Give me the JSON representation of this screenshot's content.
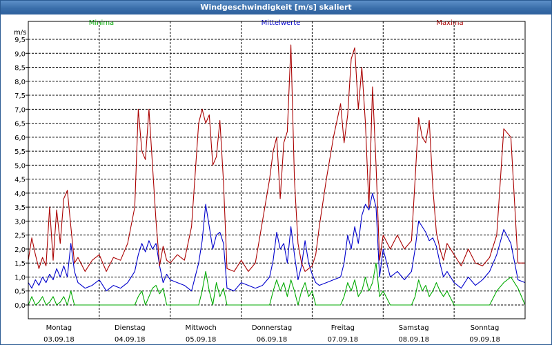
{
  "window": {
    "title": "Windgeschwindigkeit [m/s] skaliert"
  },
  "chart_data": {
    "type": "line",
    "title": "Windgeschwindigkeit [m/s] skaliert",
    "ylabel": "m/s",
    "ylim": [
      0,
      9.5
    ],
    "xlim": [
      0,
      7
    ],
    "grid": true,
    "legend": "top",
    "yticks": [
      "0,0",
      "0,5",
      "1,0",
      "1,5",
      "2,0",
      "2,5",
      "3,0",
      "3,5",
      "4,0",
      "4,5",
      "5,0",
      "5,5",
      "6,0",
      "6,5",
      "7,0",
      "7,5",
      "8,0",
      "8,5",
      "9,0",
      "9,5"
    ],
    "day_labels": [
      {
        "day": "Montag",
        "date": "03.09.18"
      },
      {
        "day": "Dienstag",
        "date": "04.09.18"
      },
      {
        "day": "Mittwoch",
        "date": "05.09.18"
      },
      {
        "day": "Donnerstag",
        "date": "06.09.18"
      },
      {
        "day": "Freitag",
        "date": "07.09.18"
      },
      {
        "day": "Samstag",
        "date": "08.09.18"
      },
      {
        "day": "Sonntag",
        "date": "09.09.18"
      }
    ],
    "series": [
      {
        "name": "Minima",
        "color": "#00aa00",
        "x": [
          0.0,
          0.05,
          0.1,
          0.15,
          0.2,
          0.25,
          0.3,
          0.35,
          0.4,
          0.45,
          0.5,
          0.55,
          0.6,
          0.65,
          0.7,
          0.8,
          0.9,
          1.0,
          1.1,
          1.2,
          1.3,
          1.4,
          1.5,
          1.55,
          1.6,
          1.65,
          1.7,
          1.75,
          1.8,
          1.85,
          1.9,
          1.95,
          2.0,
          2.1,
          2.2,
          2.3,
          2.4,
          2.45,
          2.5,
          2.55,
          2.6,
          2.65,
          2.7,
          2.75,
          2.8,
          2.9,
          3.0,
          3.1,
          3.2,
          3.3,
          3.4,
          3.45,
          3.5,
          3.55,
          3.6,
          3.65,
          3.7,
          3.75,
          3.8,
          3.85,
          3.9,
          3.95,
          4.0,
          4.05,
          4.1,
          4.2,
          4.3,
          4.4,
          4.45,
          4.5,
          4.55,
          4.6,
          4.65,
          4.7,
          4.75,
          4.8,
          4.85,
          4.9,
          4.95,
          5.0,
          5.1,
          5.2,
          5.3,
          5.4,
          5.45,
          5.5,
          5.55,
          5.6,
          5.65,
          5.7,
          5.75,
          5.8,
          5.85,
          5.9,
          6.0,
          6.1,
          6.2,
          6.3,
          6.4,
          6.5,
          6.6,
          6.7,
          6.8,
          6.9,
          7.0
        ],
        "values": [
          0.0,
          0.3,
          0.0,
          0.1,
          0.3,
          0.0,
          0.1,
          0.3,
          0.0,
          0.1,
          0.3,
          0.0,
          0.5,
          0.0,
          0.0,
          0.0,
          0.0,
          0.0,
          0.0,
          0.0,
          0.0,
          0.0,
          0.0,
          0.3,
          0.5,
          0.0,
          0.3,
          0.6,
          0.7,
          0.4,
          0.6,
          0.0,
          0.0,
          0.0,
          0.0,
          0.0,
          0.0,
          0.5,
          1.2,
          0.5,
          0.0,
          0.8,
          0.3,
          0.6,
          0.0,
          0.0,
          0.0,
          0.0,
          0.0,
          0.0,
          0.0,
          0.5,
          0.9,
          0.5,
          0.8,
          0.3,
          0.9,
          0.5,
          0.0,
          0.5,
          0.8,
          0.3,
          0.5,
          0.0,
          0.0,
          0.0,
          0.0,
          0.0,
          0.3,
          0.8,
          0.5,
          0.9,
          0.3,
          0.5,
          1.0,
          0.5,
          0.8,
          1.5,
          0.3,
          0.5,
          0.0,
          0.0,
          0.0,
          0.0,
          0.3,
          0.9,
          0.5,
          0.7,
          0.3,
          0.5,
          0.8,
          0.5,
          0.3,
          0.5,
          0.0,
          0.0,
          0.0,
          0.0,
          0.0,
          0.0,
          0.5,
          0.8,
          1.0,
          0.6,
          0.0
        ]
      },
      {
        "name": "Mittelwerte",
        "color": "#0000cc",
        "x": [
          0.0,
          0.05,
          0.1,
          0.15,
          0.2,
          0.25,
          0.3,
          0.35,
          0.4,
          0.45,
          0.5,
          0.55,
          0.6,
          0.65,
          0.7,
          0.8,
          0.9,
          1.0,
          1.1,
          1.2,
          1.3,
          1.4,
          1.5,
          1.55,
          1.6,
          1.65,
          1.7,
          1.75,
          1.8,
          1.85,
          1.9,
          1.95,
          2.0,
          2.1,
          2.2,
          2.3,
          2.4,
          2.45,
          2.5,
          2.55,
          2.6,
          2.65,
          2.7,
          2.75,
          2.8,
          2.9,
          3.0,
          3.1,
          3.2,
          3.3,
          3.4,
          3.45,
          3.5,
          3.55,
          3.6,
          3.65,
          3.7,
          3.75,
          3.8,
          3.85,
          3.9,
          3.95,
          4.0,
          4.05,
          4.1,
          4.2,
          4.3,
          4.4,
          4.45,
          4.5,
          4.55,
          4.6,
          4.65,
          4.7,
          4.75,
          4.8,
          4.85,
          4.9,
          4.95,
          5.0,
          5.1,
          5.2,
          5.3,
          5.4,
          5.45,
          5.5,
          5.55,
          5.6,
          5.65,
          5.7,
          5.75,
          5.8,
          5.85,
          5.9,
          6.0,
          6.1,
          6.2,
          6.3,
          6.4,
          6.5,
          6.6,
          6.7,
          6.8,
          6.9,
          7.0
        ],
        "values": [
          0.8,
          0.6,
          0.9,
          0.7,
          1.0,
          0.8,
          1.1,
          0.9,
          1.3,
          1.0,
          1.4,
          1.0,
          2.2,
          1.2,
          0.8,
          0.6,
          0.7,
          0.9,
          0.5,
          0.7,
          0.6,
          0.8,
          1.2,
          1.8,
          2.2,
          1.9,
          2.3,
          2.0,
          2.2,
          1.4,
          0.8,
          1.1,
          0.9,
          0.8,
          0.7,
          0.5,
          1.5,
          2.3,
          3.6,
          2.8,
          2.0,
          2.5,
          2.6,
          2.2,
          0.6,
          0.5,
          0.8,
          0.7,
          0.6,
          0.7,
          1.0,
          1.6,
          2.6,
          2.0,
          2.2,
          1.5,
          2.8,
          1.8,
          0.9,
          1.4,
          2.3,
          1.5,
          1.1,
          0.8,
          0.7,
          0.8,
          0.9,
          1.0,
          1.5,
          2.5,
          2.0,
          2.8,
          2.2,
          3.2,
          3.6,
          3.4,
          4.0,
          3.5,
          1.0,
          2.0,
          1.0,
          1.2,
          0.9,
          1.2,
          2.0,
          3.0,
          2.8,
          2.6,
          2.3,
          2.4,
          2.1,
          1.5,
          1.0,
          1.2,
          0.8,
          0.6,
          1.0,
          0.7,
          0.9,
          1.2,
          1.8,
          2.7,
          2.2,
          0.9,
          0.8
        ]
      },
      {
        "name": "Maxima",
        "color": "#aa0000",
        "x": [
          0.0,
          0.05,
          0.1,
          0.15,
          0.2,
          0.25,
          0.3,
          0.35,
          0.4,
          0.45,
          0.5,
          0.55,
          0.6,
          0.65,
          0.7,
          0.8,
          0.9,
          1.0,
          1.1,
          1.2,
          1.3,
          1.4,
          1.5,
          1.55,
          1.6,
          1.65,
          1.7,
          1.75,
          1.8,
          1.85,
          1.9,
          1.95,
          2.0,
          2.1,
          2.2,
          2.3,
          2.4,
          2.45,
          2.5,
          2.55,
          2.6,
          2.65,
          2.7,
          2.75,
          2.8,
          2.9,
          3.0,
          3.1,
          3.2,
          3.3,
          3.4,
          3.45,
          3.5,
          3.55,
          3.6,
          3.65,
          3.7,
          3.75,
          3.8,
          3.85,
          3.9,
          3.95,
          4.0,
          4.05,
          4.1,
          4.2,
          4.3,
          4.4,
          4.45,
          4.5,
          4.55,
          4.6,
          4.65,
          4.7,
          4.75,
          4.8,
          4.85,
          4.9,
          4.95,
          5.0,
          5.1,
          5.2,
          5.3,
          5.4,
          5.45,
          5.5,
          5.55,
          5.6,
          5.65,
          5.7,
          5.75,
          5.8,
          5.85,
          5.9,
          6.0,
          6.1,
          6.2,
          6.3,
          6.4,
          6.5,
          6.6,
          6.7,
          6.8,
          6.9,
          7.0
        ],
        "values": [
          1.6,
          2.4,
          1.8,
          1.3,
          1.7,
          1.4,
          3.5,
          1.6,
          3.4,
          2.2,
          3.8,
          4.1,
          2.8,
          1.5,
          1.7,
          1.2,
          1.6,
          1.8,
          1.2,
          1.7,
          1.6,
          2.2,
          3.5,
          7.0,
          5.5,
          5.2,
          7.0,
          5.0,
          3.0,
          1.4,
          2.1,
          1.6,
          1.5,
          1.8,
          1.6,
          2.8,
          6.5,
          7.0,
          6.5,
          6.8,
          5.0,
          5.3,
          6.6,
          4.4,
          1.3,
          1.2,
          1.6,
          1.2,
          1.5,
          3.0,
          4.5,
          5.5,
          6.0,
          3.8,
          5.8,
          6.2,
          9.3,
          4.5,
          2.2,
          1.5,
          1.2,
          1.3,
          1.4,
          1.8,
          2.8,
          4.5,
          6.0,
          7.2,
          5.8,
          6.8,
          8.8,
          9.2,
          7.0,
          8.5,
          6.5,
          3.5,
          7.8,
          5.0,
          1.6,
          2.5,
          2.0,
          2.5,
          2.0,
          2.3,
          4.5,
          6.7,
          6.0,
          5.8,
          6.6,
          4.2,
          2.6,
          2.0,
          1.6,
          2.2,
          1.8,
          1.4,
          2.0,
          1.5,
          1.4,
          1.7,
          2.5,
          6.3,
          6.0,
          1.5,
          1.5
        ]
      }
    ]
  }
}
